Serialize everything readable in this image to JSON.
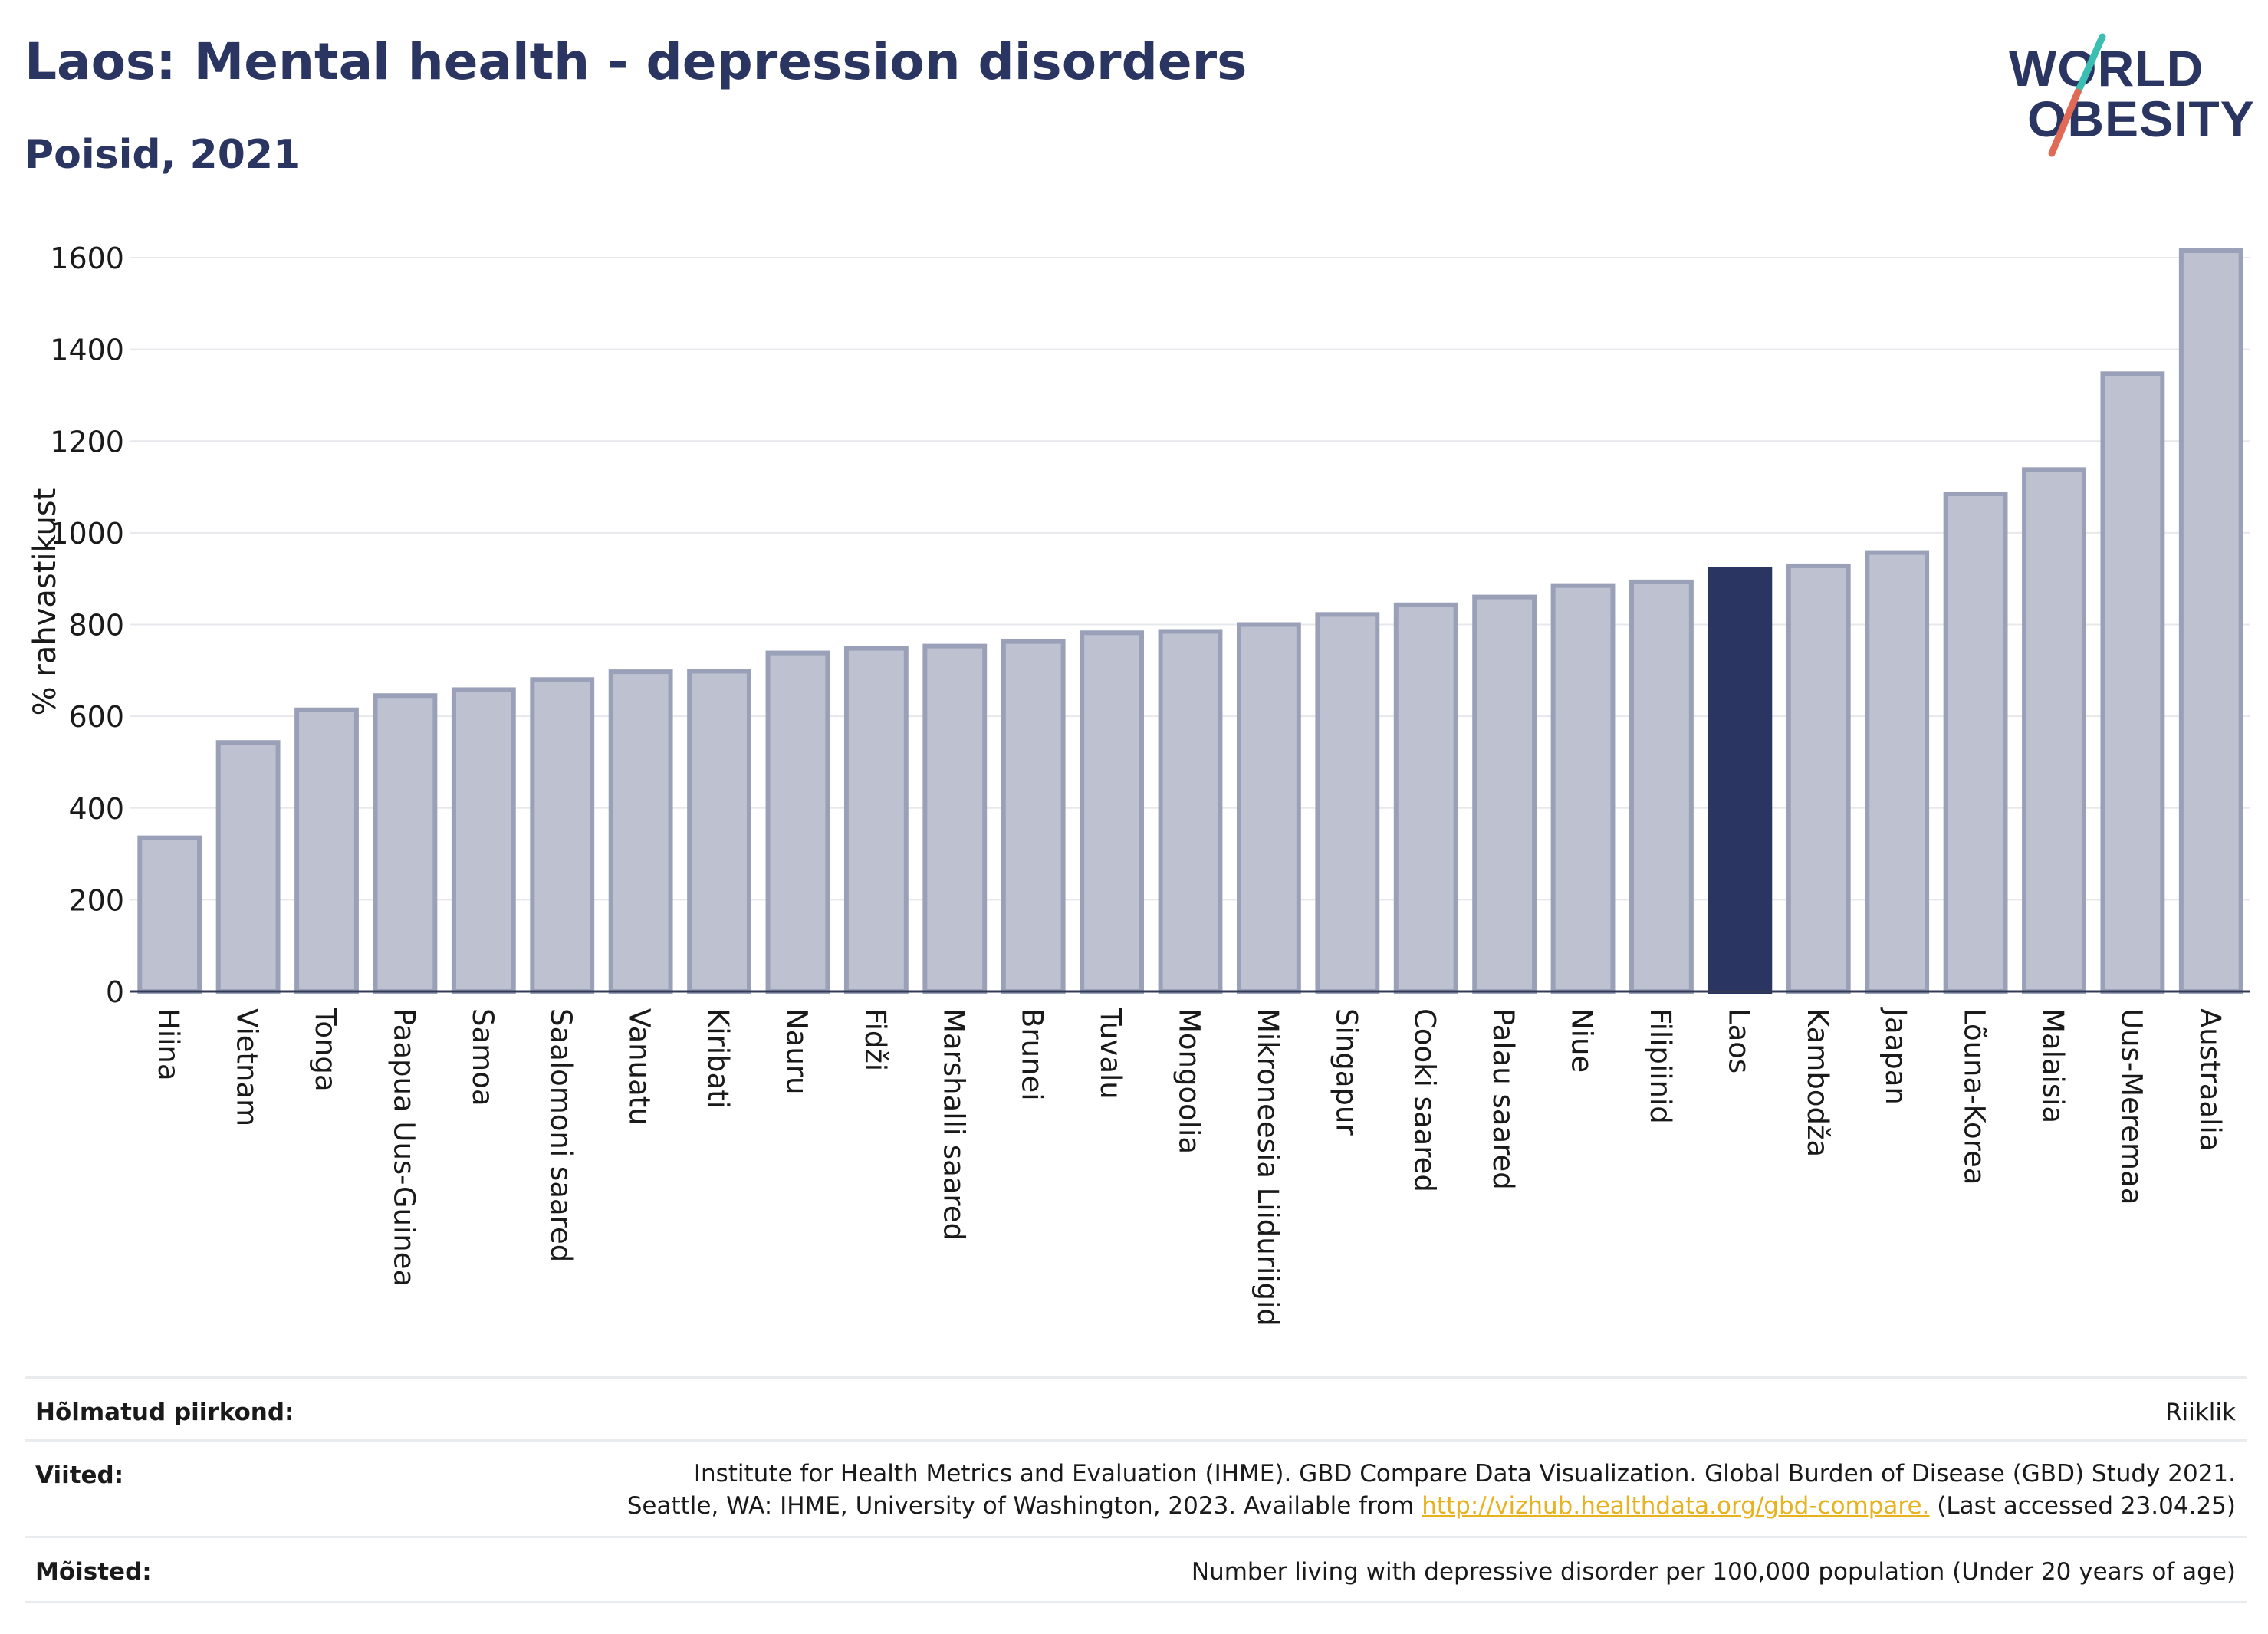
{
  "header": {
    "title": "Laos: Mental health - depression disorders",
    "subtitle": "Poisid, 2021"
  },
  "logo": {
    "line1": "WORLD",
    "line2": "OBESITY",
    "text_color": "#2b3561",
    "slash_top_color": "#3bbfb3",
    "slash_bottom_color": "#e06a55"
  },
  "colors": {
    "bar": "#bec2d0",
    "bar_stroke": "#9aa0b8",
    "highlight": "#2b3561",
    "axis_text": "#1a1a1a",
    "grid": "#e6e8ec"
  },
  "chart_data": {
    "type": "bar",
    "ylabel": "% rahvastikust",
    "ylim": [
      0,
      1650
    ],
    "yticks": [
      0,
      200,
      400,
      600,
      800,
      1000,
      1200,
      1400,
      1600
    ],
    "grid": true,
    "highlight": "Laos",
    "categories": [
      "Hiina",
      "Vietnam",
      "Tonga",
      "Paapua Uus-Guinea",
      "Samoa",
      "Saalomoni saared",
      "Vanuatu",
      "Kiribati",
      "Nauru",
      "Fidži",
      "Marshalli saared",
      "Brunei",
      "Tuvalu",
      "Mongoolia",
      "Mikroneesia Liiduriigid",
      "Singapur",
      "Cooki saared",
      "Palau saared",
      "Niue",
      "Filipiinid",
      "Laos",
      "Kambodža",
      "Jaapan",
      "Lõuna-Korea",
      "Malaisia",
      "Uus-Meremaa",
      "Austraalia"
    ],
    "values": [
      335,
      543,
      614,
      645,
      658,
      680,
      697,
      698,
      738,
      748,
      753,
      763,
      782,
      785,
      800,
      822,
      843,
      860,
      885,
      893,
      920,
      928,
      957,
      1085,
      1138,
      1347,
      1615
    ]
  },
  "footer": {
    "region_label": "Hõlmatud piirkond:",
    "region_value": "Riiklik",
    "refs_label": "Viited:",
    "refs_line1": "Institute for Health Metrics and Evaluation (IHME). GBD Compare Data Visualization. Global Burden of Disease (GBD) Study 2021.",
    "refs_line2_pre": "Seattle, WA: IHME, University of Washington, 2023. Available from ",
    "refs_link": "http://vizhub.healthdata.org/gbd-compare.",
    "refs_line2_post": " (Last accessed 23.04.25)",
    "def_label": "Mõisted:",
    "def_value": "Number living with depressive disorder per 100,000 population (Under 20 years of age)"
  }
}
